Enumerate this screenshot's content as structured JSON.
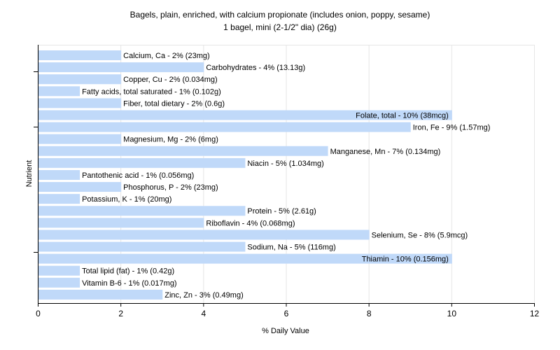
{
  "chart_data": {
    "type": "bar",
    "orientation": "horizontal",
    "title": "Bagels, plain, enriched, with calcium propionate (includes onion, poppy, sesame)",
    "subtitle": "1 bagel, mini (2-1/2\" dia) (26g)",
    "xlabel": "% Daily Value",
    "ylabel": "Nutrient",
    "xlim": [
      0,
      12
    ],
    "xticks": [
      "0",
      "2",
      "4",
      "6",
      "8",
      "10",
      "12"
    ],
    "grid": true,
    "bar_color": "#c0d9f9",
    "categories": [
      "Calcium, Ca",
      "Carbohydrates",
      "Copper, Cu",
      "Fatty acids, total saturated",
      "Fiber, total dietary",
      "Folate, total",
      "Iron, Fe",
      "Magnesium, Mg",
      "Manganese, Mn",
      "Niacin",
      "Pantothenic acid",
      "Phosphorus, P",
      "Potassium, K",
      "Protein",
      "Riboflavin",
      "Selenium, Se",
      "Sodium, Na",
      "Thiamin",
      "Total lipid (fat)",
      "Vitamin B-6",
      "Zinc, Zn"
    ],
    "values": [
      2,
      4,
      2,
      1,
      2,
      10,
      9,
      2,
      7,
      5,
      1,
      2,
      1,
      5,
      4,
      8,
      5,
      10,
      1,
      1,
      3
    ],
    "labels": [
      "Calcium, Ca - 2% (23mg)",
      "Carbohydrates - 4% (13.13g)",
      "Copper, Cu - 2% (0.034mg)",
      "Fatty acids, total saturated - 1% (0.102g)",
      "Fiber, total dietary - 2% (0.6g)",
      "Folate, total - 10% (38mcg)",
      "Iron, Fe - 9% (1.57mg)",
      "Magnesium, Mg - 2% (6mg)",
      "Manganese, Mn - 7% (0.134mg)",
      "Niacin - 5% (1.034mg)",
      "Pantothenic acid - 1% (0.056mg)",
      "Phosphorus, P - 2% (23mg)",
      "Potassium, K - 1% (20mg)",
      "Protein - 5% (2.61g)",
      "Riboflavin - 4% (0.068mg)",
      "Selenium, Se - 8% (5.9mcg)",
      "Sodium, Na - 5% (116mg)",
      "Thiamin - 10% (0.156mg)",
      "Total lipid (fat) - 1% (0.42g)",
      "Vitamin B-6 - 1% (0.017mg)",
      "Zinc, Zn - 3% (0.49mg)"
    ]
  }
}
